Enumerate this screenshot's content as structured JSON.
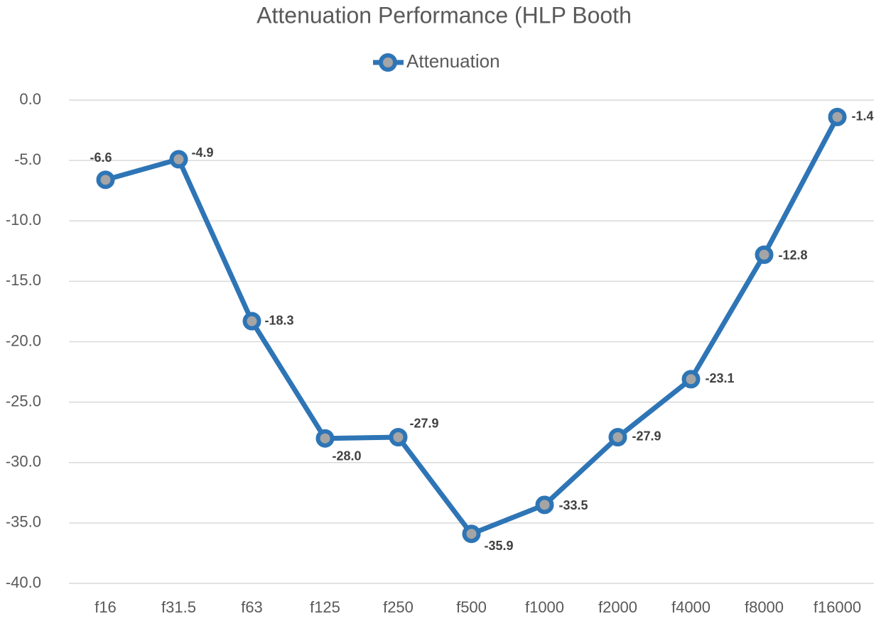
{
  "chart_data": {
    "type": "line",
    "title": "Attenuation Performance (HLP Booth",
    "categories": [
      "f16",
      "f31.5",
      "f63",
      "f125",
      "f250",
      "f500",
      "f1000",
      "f2000",
      "f4000",
      "f8000",
      "f16000"
    ],
    "series": [
      {
        "name": "Attenuation",
        "color": "#2e75b6",
        "marker_fill": "#a5a5a5",
        "values": [
          -6.6,
          -4.9,
          -18.3,
          -28.0,
          -27.9,
          -35.9,
          -33.5,
          -27.9,
          -23.1,
          -12.8,
          -1.4
        ],
        "value_labels": [
          "-6.6",
          "-4.9",
          "-18.3",
          "-28.0",
          "-27.9",
          "-35.9",
          "-33.5",
          "-27.9",
          "-23.1",
          "-12.8",
          "-1.4"
        ]
      }
    ],
    "ylim": [
      -40,
      0
    ],
    "yticks": [
      {
        "value": 0,
        "label": "0.0"
      },
      {
        "value": -5,
        "label": "-5.0"
      },
      {
        "value": -10,
        "label": "-10.0"
      },
      {
        "value": -15,
        "label": "-15.0"
      },
      {
        "value": -20,
        "label": "-20.0"
      },
      {
        "value": -25,
        "label": "-25.0"
      },
      {
        "value": -30,
        "label": "-30.0"
      },
      {
        "value": -35,
        "label": "-35.0"
      },
      {
        "value": -40,
        "label": "-40.0"
      }
    ],
    "grid": true,
    "legend": "top"
  }
}
